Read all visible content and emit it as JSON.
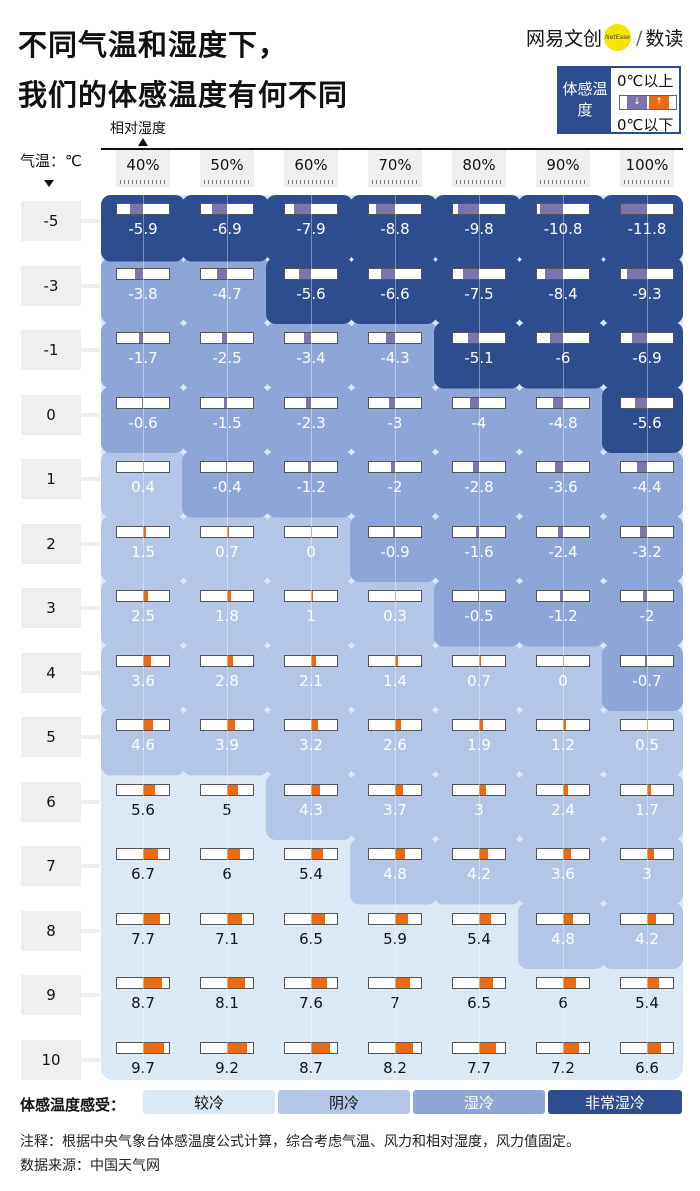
{
  "title": {
    "line1": "不同气温和湿度下，",
    "line2": "我们的体感温度有何不同"
  },
  "brand": {
    "name": "网易文创",
    "dot_text": "NetEase",
    "sep": "/",
    "sub": "数读"
  },
  "legend": {
    "label": "体感温度",
    "above": "0℃以上",
    "below": "0℃以下",
    "neg_arrow": "↓",
    "pos_arrow": "↑"
  },
  "axis": {
    "x_label": "相对湿度",
    "y_label": "气温：℃"
  },
  "colors": {
    "pos": "#ec6a10",
    "neg": "#7b74ad",
    "very_damp_cold": "#2d4d8f",
    "damp_cold": "#8ea6d7",
    "gloomy_cold": "#b3c6e8",
    "cool": "#dbe9f6"
  },
  "chart_data": {
    "type": "table",
    "x_label": "相对湿度",
    "y_label": "气温：℃",
    "x": [
      "40%",
      "50%",
      "60%",
      "70%",
      "80%",
      "90%",
      "100%"
    ],
    "y": [
      "-5",
      "-3",
      "-1",
      "0",
      "1",
      "2",
      "3",
      "4",
      "5",
      "6",
      "7",
      "8",
      "9",
      "10"
    ],
    "values": [
      [
        "-5.9",
        "-6.9",
        "-7.9",
        "-8.8",
        "-9.8",
        "-10.8",
        "-11.8"
      ],
      [
        "-3.8",
        "-4.7",
        "-5.6",
        "-6.6",
        "-7.5",
        "-8.4",
        "-9.3"
      ],
      [
        "-1.7",
        "-2.5",
        "-3.4",
        "-4.3",
        "-5.1",
        "-6",
        "-6.9"
      ],
      [
        "-0.6",
        "-1.5",
        "-2.3",
        "-3",
        "-4",
        "-4.8",
        "-5.6"
      ],
      [
        "0.4",
        "-0.4",
        "-1.2",
        "-2",
        "-2.8",
        "-3.6",
        "-4.4"
      ],
      [
        "1.5",
        "0.7",
        "0",
        "-0.9",
        "-1.6",
        "-2.4",
        "-3.2"
      ],
      [
        "2.5",
        "1.8",
        "1",
        "0.3",
        "-0.5",
        "-1.2",
        "-2"
      ],
      [
        "3.6",
        "2.8",
        "2.1",
        "1.4",
        "0.7",
        "0",
        "-0.7"
      ],
      [
        "4.6",
        "3.9",
        "3.2",
        "2.6",
        "1.9",
        "1.2",
        "0.5"
      ],
      [
        "5.6",
        "5",
        "4.3",
        "3.7",
        "3",
        "2.4",
        "1.7"
      ],
      [
        "6.7",
        "6",
        "5.4",
        "4.8",
        "4.2",
        "3.6",
        "3"
      ],
      [
        "7.7",
        "7.1",
        "6.5",
        "5.9",
        "5.4",
        "4.8",
        "4.2"
      ],
      [
        "8.7",
        "8.1",
        "7.6",
        "7",
        "6.5",
        "6",
        "5.4"
      ],
      [
        "9.7",
        "9.2",
        "8.7",
        "8.2",
        "7.7",
        "7.2",
        "6.6"
      ]
    ],
    "category_labels": [
      "较冷",
      "阴冷",
      "湿冷",
      "非常湿冷"
    ],
    "categories": [
      [
        3,
        3,
        3,
        3,
        3,
        3,
        3
      ],
      [
        2,
        2,
        3,
        3,
        3,
        3,
        3
      ],
      [
        2,
        2,
        2,
        2,
        3,
        3,
        3
      ],
      [
        2,
        2,
        2,
        2,
        2,
        2,
        3
      ],
      [
        1,
        2,
        2,
        2,
        2,
        2,
        2
      ],
      [
        1,
        1,
        1,
        2,
        2,
        2,
        2
      ],
      [
        1,
        1,
        1,
        1,
        2,
        2,
        2
      ],
      [
        1,
        1,
        1,
        1,
        1,
        1,
        2
      ],
      [
        1,
        1,
        1,
        1,
        1,
        1,
        1
      ],
      [
        0,
        0,
        1,
        1,
        1,
        1,
        1
      ],
      [
        0,
        0,
        0,
        1,
        1,
        1,
        1
      ],
      [
        0,
        0,
        0,
        0,
        0,
        1,
        1
      ],
      [
        0,
        0,
        0,
        0,
        0,
        0,
        0
      ],
      [
        0,
        0,
        0,
        0,
        0,
        0,
        0
      ]
    ]
  },
  "footer": {
    "feel_label": "体感温度感受：",
    "feel_items": [
      "较冷",
      "阴冷",
      "湿冷",
      "非常湿冷"
    ],
    "note": "注释：根据中央气象台体感温度公式计算，综合考虑气温、风力和相对湿度，风力值固定。",
    "source": "数据来源：中国天气网"
  }
}
